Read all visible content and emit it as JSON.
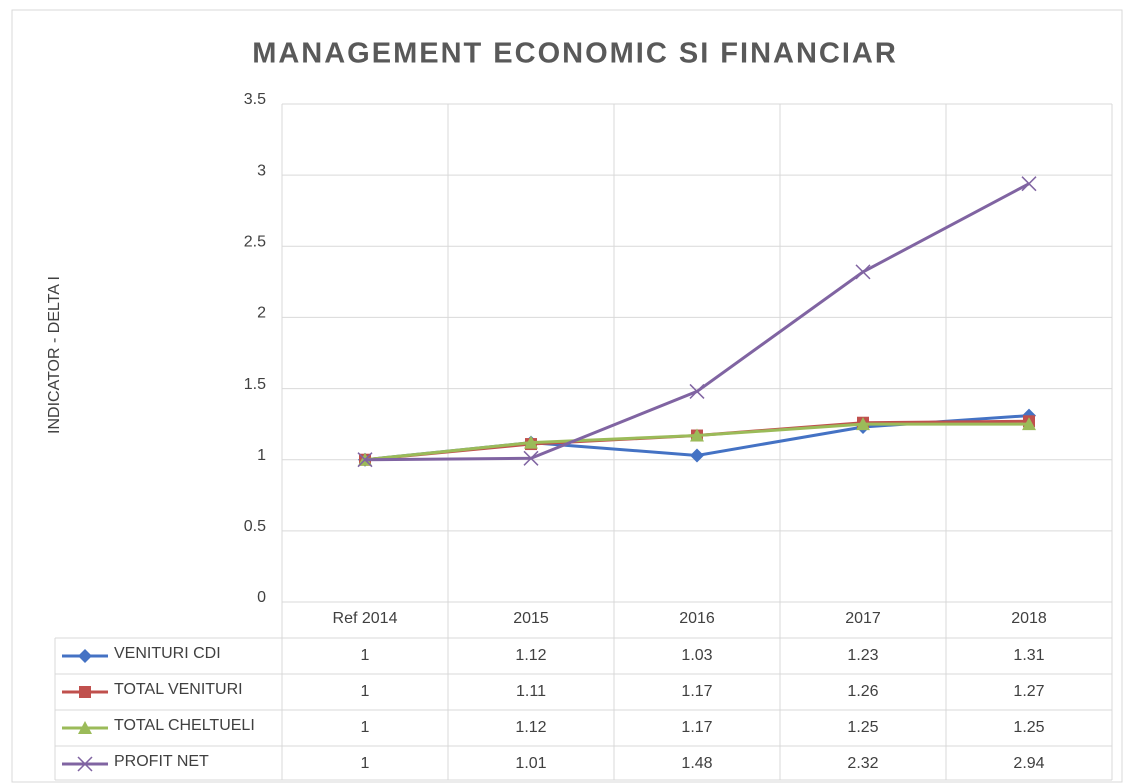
{
  "chart_data": {
    "type": "line",
    "title": "MANAGEMENT ECONOMIC SI FINANCIAR",
    "y_label": "INDICATOR - DELTA I",
    "categories": [
      "Ref 2014",
      "2015",
      "2016",
      "2017",
      "2018"
    ],
    "series": [
      {
        "name": "VENITURI CDI",
        "color": "#4472c4",
        "marker": "diamond",
        "values": [
          1,
          1.12,
          1.03,
          1.23,
          1.31
        ]
      },
      {
        "name": "TOTAL VENITURI",
        "color": "#c0504d",
        "marker": "square",
        "values": [
          1,
          1.11,
          1.17,
          1.26,
          1.27
        ]
      },
      {
        "name": "TOTAL CHELTUELI",
        "color": "#9bbb59",
        "marker": "triangle",
        "values": [
          1,
          1.12,
          1.17,
          1.25,
          1.25
        ]
      },
      {
        "name": "PROFIT NET",
        "color": "#8064a2",
        "marker": "x",
        "values": [
          1,
          1.01,
          1.48,
          2.32,
          2.94
        ]
      }
    ],
    "ylim": [
      0,
      3.5
    ],
    "yticks": [
      0,
      0.5,
      1,
      1.5,
      2,
      2.5,
      3,
      3.5
    ],
    "grid": true,
    "data_table": true
  }
}
